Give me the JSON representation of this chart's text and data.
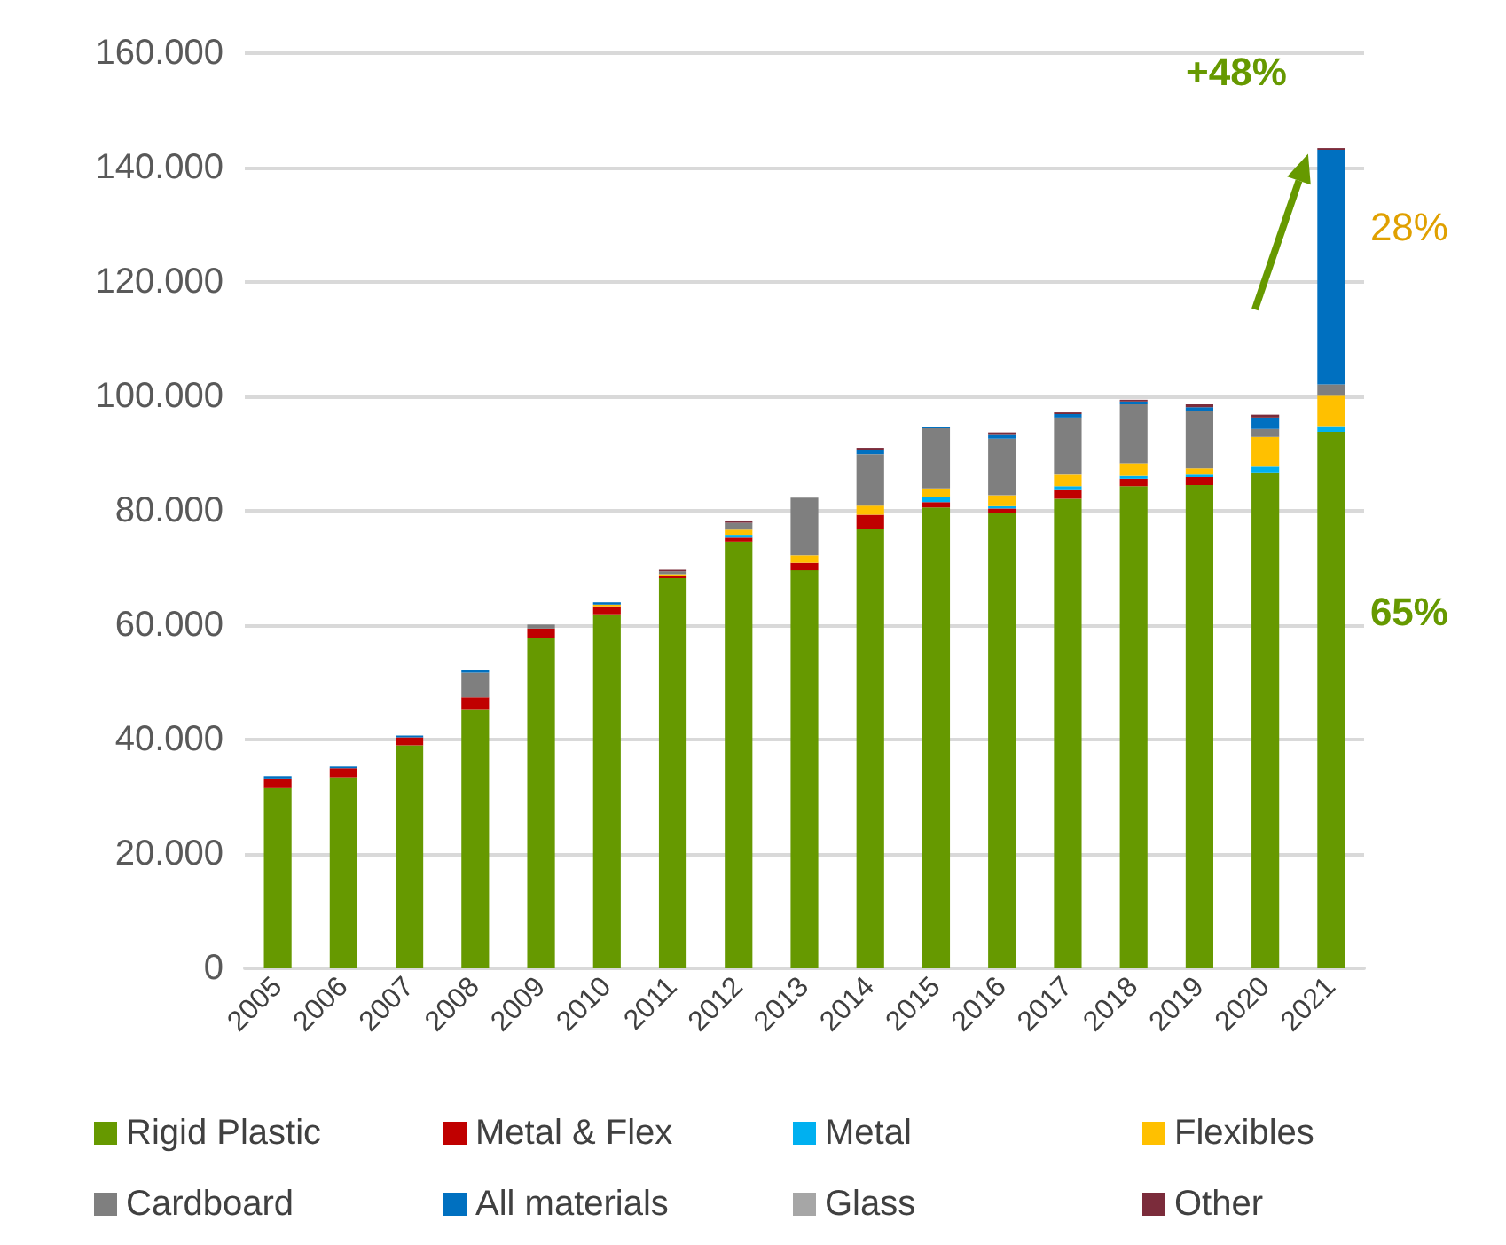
{
  "chart_data": {
    "type": "bar",
    "stacked": true,
    "categories": [
      "2005",
      "2006",
      "2007",
      "2008",
      "2009",
      "2010",
      "2011",
      "2012",
      "2013",
      "2014",
      "2015",
      "2016",
      "2017",
      "2018",
      "2019",
      "2020",
      "2021"
    ],
    "series": [
      {
        "name": "Rigid Plastic",
        "color": "#669900",
        "values": [
          31500,
          33400,
          39000,
          45200,
          57800,
          61900,
          68200,
          74600,
          69600,
          76800,
          80600,
          79600,
          82100,
          84300,
          84500,
          86700,
          93800
        ]
      },
      {
        "name": "Metal & Flex",
        "color": "#c00000",
        "values": [
          1700,
          1600,
          1400,
          2200,
          1600,
          1400,
          400,
          700,
          1300,
          2500,
          900,
          800,
          1500,
          1300,
          1400,
          null,
          null
        ]
      },
      {
        "name": "Metal",
        "color": "#00b0f0",
        "values": [
          null,
          null,
          null,
          null,
          null,
          null,
          null,
          500,
          null,
          null,
          900,
          400,
          700,
          500,
          400,
          1000,
          1000
        ]
      },
      {
        "name": "Flexibles",
        "color": "#ffc000",
        "values": [
          null,
          null,
          null,
          null,
          null,
          300,
          300,
          900,
          1300,
          1600,
          1500,
          1900,
          2000,
          2200,
          1100,
          5200,
          5300
        ]
      },
      {
        "name": "Cardboard",
        "color": "#7f7f7f",
        "values": [
          null,
          null,
          null,
          4300,
          700,
          null,
          500,
          1200,
          10100,
          9000,
          10500,
          9900,
          10000,
          10300,
          10000,
          1400,
          2000
        ]
      },
      {
        "name": "All materials",
        "color": "#0070c0",
        "values": [
          400,
          300,
          300,
          400,
          null,
          400,
          null,
          null,
          null,
          800,
          300,
          800,
          600,
          500,
          700,
          2000,
          41000
        ]
      },
      {
        "name": "Glass",
        "color": "#a6a6a6",
        "values": [
          null,
          null,
          null,
          null,
          null,
          null,
          null,
          null,
          null,
          null,
          null,
          null,
          null,
          null,
          null,
          null,
          null
        ]
      },
      {
        "name": "Other",
        "color": "#7b2c3b",
        "values": [
          null,
          null,
          null,
          null,
          null,
          null,
          300,
          400,
          null,
          300,
          null,
          300,
          300,
          300,
          500,
          500,
          300
        ]
      }
    ],
    "ylim": [
      0,
      160000
    ],
    "yticks": [
      {
        "value": 0,
        "label": "0"
      },
      {
        "value": 20000,
        "label": "20.000"
      },
      {
        "value": 40000,
        "label": "40.000"
      },
      {
        "value": 60000,
        "label": "60.000"
      },
      {
        "value": 80000,
        "label": "80.000"
      },
      {
        "value": 100000,
        "label": "100.000"
      },
      {
        "value": 120000,
        "label": "120.000"
      },
      {
        "value": 140000,
        "label": "140.000"
      },
      {
        "value": 160000,
        "label": "160.000"
      }
    ],
    "grid": "y",
    "legend": "bottom",
    "annotations": [
      "+48%",
      "28%",
      "65%"
    ]
  }
}
